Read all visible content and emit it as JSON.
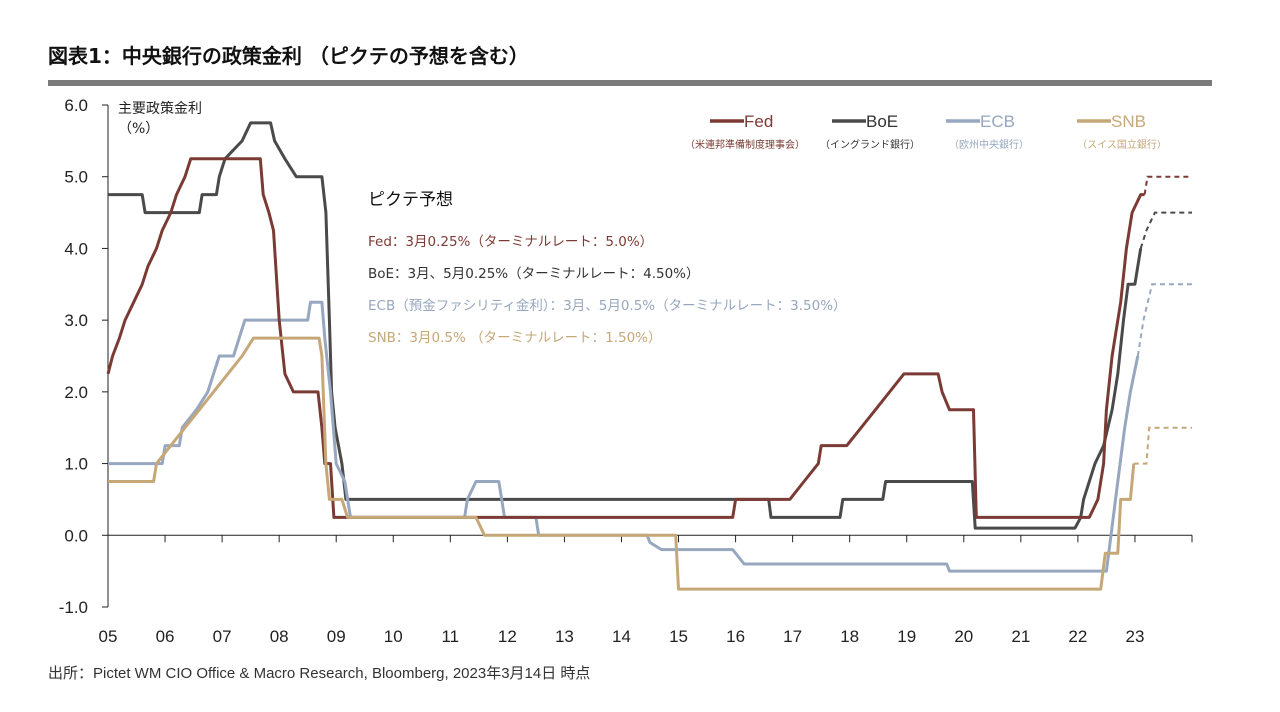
{
  "title": "図表1：中央銀行の政策金利 （ピクテの予想を含む）",
  "source": "出所：Pictet WM CIO Office & Macro Research, Bloomberg, 2023年3月14日 時点",
  "chart_data": {
    "type": "line",
    "ylabel_lines": [
      "主要政策金利",
      "（%）"
    ],
    "ylim": [
      -1.0,
      6.0
    ],
    "yticks": [
      "6.0",
      "5.0",
      "4.0",
      "3.0",
      "2.0",
      "1.0",
      "0.0",
      "-1.0"
    ],
    "xlim": [
      2005,
      2024
    ],
    "xticks": [
      "05",
      "06",
      "07",
      "08",
      "09",
      "10",
      "11",
      "12",
      "13",
      "14",
      "15",
      "16",
      "17",
      "18",
      "19",
      "20",
      "21",
      "22",
      "23"
    ],
    "legend_position": "top-right",
    "annotation": {
      "title": "ピクテ予想",
      "lines": [
        {
          "text": "Fed：3月0.25%（ターミナルレート：5.0%）",
          "color": "#7b3b34"
        },
        {
          "text": "BoE：3月、5月0.25%（ターミナルレート：4.50%）",
          "color": "#333333"
        },
        {
          "text": "ECB（預金ファシリティ金利）：3月、5月0.5%（ターミナルレート：3.50%）",
          "color": "#97a7bf"
        },
        {
          "text": "SNB：3月0.5% （ターミナルレート：1.50%）",
          "color": "#c6a878"
        }
      ]
    },
    "series": [
      {
        "name": "Fed",
        "sublabel": "（米連邦準備制度理事会）",
        "color": "#7b3b34",
        "points": [
          [
            2005.0,
            2.25
          ],
          [
            2005.08,
            2.5
          ],
          [
            2005.2,
            2.75
          ],
          [
            2005.3,
            3.0
          ],
          [
            2005.45,
            3.25
          ],
          [
            2005.6,
            3.5
          ],
          [
            2005.7,
            3.75
          ],
          [
            2005.85,
            4.0
          ],
          [
            2005.95,
            4.25
          ],
          [
            2006.1,
            4.5
          ],
          [
            2006.2,
            4.75
          ],
          [
            2006.35,
            5.0
          ],
          [
            2006.45,
            5.25
          ],
          [
            2007.67,
            5.25
          ],
          [
            2007.72,
            4.75
          ],
          [
            2007.82,
            4.5
          ],
          [
            2007.9,
            4.25
          ],
          [
            2008.0,
            3.0
          ],
          [
            2008.1,
            2.25
          ],
          [
            2008.25,
            2.0
          ],
          [
            2008.68,
            2.0
          ],
          [
            2008.75,
            1.5
          ],
          [
            2008.8,
            1.0
          ],
          [
            2008.9,
            1.0
          ],
          [
            2008.96,
            0.25
          ],
          [
            2015.95,
            0.25
          ],
          [
            2016.0,
            0.5
          ],
          [
            2016.95,
            0.5
          ],
          [
            2017.2,
            0.75
          ],
          [
            2017.45,
            1.0
          ],
          [
            2017.5,
            1.25
          ],
          [
            2017.95,
            1.25
          ],
          [
            2018.2,
            1.5
          ],
          [
            2018.45,
            1.75
          ],
          [
            2018.7,
            2.0
          ],
          [
            2018.95,
            2.25
          ],
          [
            2019.55,
            2.25
          ],
          [
            2019.62,
            2.0
          ],
          [
            2019.75,
            1.75
          ],
          [
            2020.17,
            1.75
          ],
          [
            2020.22,
            0.25
          ],
          [
            2022.2,
            0.25
          ],
          [
            2022.35,
            0.5
          ],
          [
            2022.45,
            1.0
          ],
          [
            2022.5,
            1.75
          ],
          [
            2022.6,
            2.5
          ],
          [
            2022.75,
            3.25
          ],
          [
            2022.85,
            4.0
          ],
          [
            2022.95,
            4.5
          ],
          [
            2023.1,
            4.75
          ],
          [
            2023.17,
            4.75
          ]
        ],
        "forecast": [
          [
            2023.17,
            4.75
          ],
          [
            2023.22,
            5.0
          ],
          [
            2024.0,
            5.0
          ]
        ]
      },
      {
        "name": "BoE",
        "sublabel": "（イングランド銀行）",
        "color": "#4a4a4a",
        "points": [
          [
            2005.0,
            4.75
          ],
          [
            2005.6,
            4.75
          ],
          [
            2005.65,
            4.5
          ],
          [
            2006.6,
            4.5
          ],
          [
            2006.65,
            4.75
          ],
          [
            2006.9,
            4.75
          ],
          [
            2006.95,
            5.0
          ],
          [
            2007.05,
            5.25
          ],
          [
            2007.35,
            5.5
          ],
          [
            2007.5,
            5.75
          ],
          [
            2007.85,
            5.75
          ],
          [
            2007.92,
            5.5
          ],
          [
            2008.1,
            5.25
          ],
          [
            2008.3,
            5.0
          ],
          [
            2008.75,
            5.0
          ],
          [
            2008.82,
            4.5
          ],
          [
            2008.88,
            3.0
          ],
          [
            2008.92,
            2.0
          ],
          [
            2008.98,
            1.5
          ],
          [
            2009.1,
            1.0
          ],
          [
            2009.17,
            0.5
          ],
          [
            2016.58,
            0.5
          ],
          [
            2016.62,
            0.25
          ],
          [
            2017.83,
            0.25
          ],
          [
            2017.88,
            0.5
          ],
          [
            2018.58,
            0.5
          ],
          [
            2018.63,
            0.75
          ],
          [
            2020.15,
            0.75
          ],
          [
            2020.2,
            0.1
          ],
          [
            2021.95,
            0.1
          ],
          [
            2022.05,
            0.25
          ],
          [
            2022.1,
            0.5
          ],
          [
            2022.2,
            0.75
          ],
          [
            2022.3,
            1.0
          ],
          [
            2022.45,
            1.25
          ],
          [
            2022.6,
            1.75
          ],
          [
            2022.7,
            2.25
          ],
          [
            2022.8,
            3.0
          ],
          [
            2022.88,
            3.5
          ],
          [
            2023.0,
            3.5
          ],
          [
            2023.1,
            4.0
          ]
        ],
        "forecast": [
          [
            2023.1,
            4.0
          ],
          [
            2023.2,
            4.25
          ],
          [
            2023.35,
            4.5
          ],
          [
            2024.0,
            4.5
          ]
        ]
      },
      {
        "name": "ECB",
        "sublabel": "（欧州中央銀行）",
        "color": "#97a7bf",
        "points": [
          [
            2005.0,
            1.0
          ],
          [
            2005.95,
            1.0
          ],
          [
            2006.0,
            1.25
          ],
          [
            2006.25,
            1.25
          ],
          [
            2006.3,
            1.5
          ],
          [
            2006.55,
            1.75
          ],
          [
            2006.75,
            2.0
          ],
          [
            2006.85,
            2.25
          ],
          [
            2006.95,
            2.5
          ],
          [
            2007.2,
            2.5
          ],
          [
            2007.4,
            3.0
          ],
          [
            2008.5,
            3.0
          ],
          [
            2008.55,
            3.25
          ],
          [
            2008.75,
            3.25
          ],
          [
            2008.8,
            2.75
          ],
          [
            2008.9,
            2.0
          ],
          [
            2009.0,
            1.0
          ],
          [
            2009.15,
            0.75
          ],
          [
            2009.25,
            0.25
          ],
          [
            2011.25,
            0.25
          ],
          [
            2011.3,
            0.5
          ],
          [
            2011.45,
            0.75
          ],
          [
            2011.85,
            0.75
          ],
          [
            2011.9,
            0.5
          ],
          [
            2011.95,
            0.25
          ],
          [
            2012.5,
            0.25
          ],
          [
            2012.55,
            0.0
          ],
          [
            2014.45,
            0.0
          ],
          [
            2014.5,
            -0.1
          ],
          [
            2014.7,
            -0.2
          ],
          [
            2015.95,
            -0.2
          ],
          [
            2016.15,
            -0.4
          ],
          [
            2019.7,
            -0.4
          ],
          [
            2019.75,
            -0.5
          ],
          [
            2022.5,
            -0.5
          ],
          [
            2022.58,
            0.0
          ],
          [
            2022.7,
            0.75
          ],
          [
            2022.82,
            1.5
          ],
          [
            2022.92,
            2.0
          ],
          [
            2023.05,
            2.5
          ]
        ],
        "forecast": [
          [
            2023.05,
            2.5
          ],
          [
            2023.15,
            3.0
          ],
          [
            2023.3,
            3.5
          ],
          [
            2024.0,
            3.5
          ]
        ]
      },
      {
        "name": "SNB",
        "sublabel": "（スイス国立銀行）",
        "color": "#c6a878",
        "points": [
          [
            2005.0,
            0.75
          ],
          [
            2005.8,
            0.75
          ],
          [
            2005.85,
            1.0
          ],
          [
            2006.1,
            1.25
          ],
          [
            2006.35,
            1.5
          ],
          [
            2006.6,
            1.75
          ],
          [
            2006.85,
            2.0
          ],
          [
            2007.1,
            2.25
          ],
          [
            2007.35,
            2.5
          ],
          [
            2007.55,
            2.75
          ],
          [
            2008.7,
            2.75
          ],
          [
            2008.75,
            2.5
          ],
          [
            2008.82,
            1.0
          ],
          [
            2008.88,
            0.5
          ],
          [
            2009.1,
            0.5
          ],
          [
            2009.2,
            0.25
          ],
          [
            2011.45,
            0.25
          ],
          [
            2011.6,
            0.0
          ],
          [
            2014.95,
            0.0
          ],
          [
            2015.0,
            -0.75
          ],
          [
            2022.4,
            -0.75
          ],
          [
            2022.48,
            -0.25
          ],
          [
            2022.7,
            -0.25
          ],
          [
            2022.75,
            0.5
          ],
          [
            2022.92,
            0.5
          ],
          [
            2022.98,
            1.0
          ]
        ],
        "forecast": [
          [
            2022.98,
            1.0
          ],
          [
            2023.2,
            1.0
          ],
          [
            2023.25,
            1.5
          ],
          [
            2024.0,
            1.5
          ]
        ]
      }
    ]
  }
}
